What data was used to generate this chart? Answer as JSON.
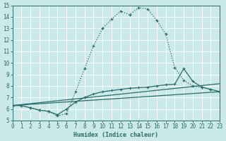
{
  "xlabel": "Humidex (Indice chaleur)",
  "background_color": "#cce9e9",
  "grid_color": "#c0d8d8",
  "line_color": "#2a6b6b",
  "xlim": [
    0,
    23
  ],
  "ylim": [
    5,
    15
  ],
  "xticks": [
    0,
    1,
    2,
    3,
    4,
    5,
    6,
    7,
    8,
    9,
    10,
    11,
    12,
    13,
    14,
    15,
    16,
    17,
    18,
    19,
    20,
    21,
    22,
    23
  ],
  "yticks": [
    5,
    6,
    7,
    8,
    9,
    10,
    11,
    12,
    13,
    14,
    15
  ],
  "line1_x": [
    0,
    1,
    2,
    3,
    4,
    5,
    6,
    7,
    8,
    9,
    10,
    11,
    12,
    13,
    14,
    15,
    16,
    17,
    18,
    19,
    20,
    21,
    22,
    23
  ],
  "line1_y": [
    6.3,
    6.3,
    6.1,
    5.9,
    5.8,
    5.4,
    5.6,
    7.5,
    9.5,
    11.5,
    13.0,
    13.8,
    14.5,
    14.2,
    14.8,
    14.7,
    13.7,
    12.5,
    9.6,
    8.5,
    8.0,
    7.9,
    7.7,
    7.5
  ],
  "line2_x": [
    0,
    1,
    2,
    3,
    4,
    5,
    6,
    7,
    8,
    9,
    10,
    11,
    12,
    13,
    14,
    15,
    16,
    17,
    18,
    19,
    20,
    21,
    22,
    23
  ],
  "line2_y": [
    6.3,
    6.3,
    6.1,
    5.9,
    5.8,
    5.5,
    6.0,
    6.6,
    7.0,
    7.3,
    7.5,
    7.6,
    7.7,
    7.8,
    7.85,
    7.9,
    8.0,
    8.1,
    8.15,
    9.5,
    8.4,
    7.9,
    7.7,
    7.5
  ],
  "line3_x": [
    0,
    23
  ],
  "line3_y": [
    6.3,
    8.2
  ],
  "line4_x": [
    0,
    23
  ],
  "line4_y": [
    6.3,
    7.5
  ],
  "tick_fontsize": 5.5,
  "label_fontsize": 6.0
}
